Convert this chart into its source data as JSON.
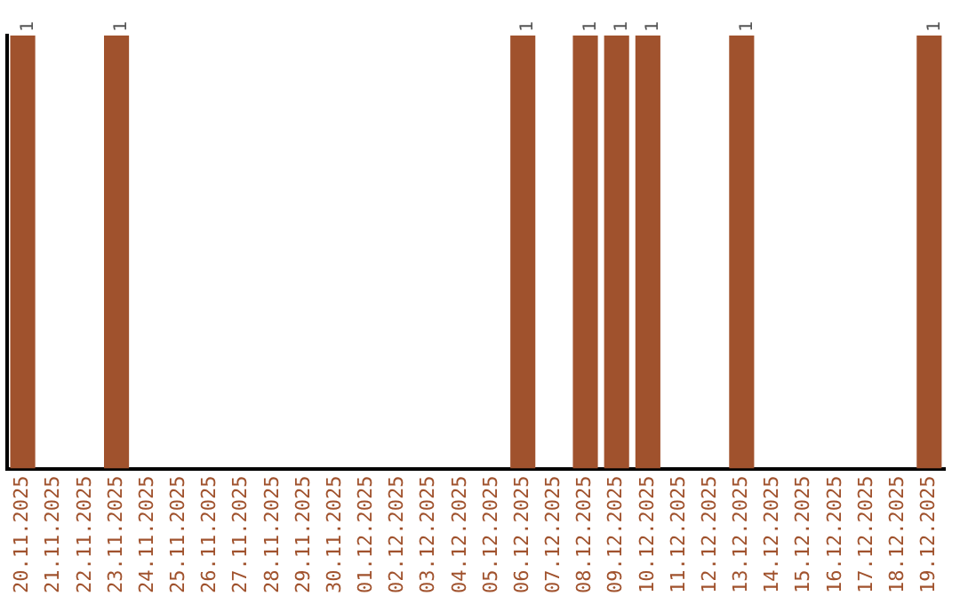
{
  "chart_data": {
    "type": "bar",
    "categories": [
      "20.11.2025",
      "21.11.2025",
      "22.11.2025",
      "23.11.2025",
      "24.11.2025",
      "25.11.2025",
      "26.11.2025",
      "27.11.2025",
      "28.11.2025",
      "29.11.2025",
      "30.11.2025",
      "01.12.2025",
      "02.12.2025",
      "03.12.2025",
      "04.12.2025",
      "05.12.2025",
      "06.12.2025",
      "07.12.2025",
      "08.12.2025",
      "09.12.2025",
      "10.12.2025",
      "11.12.2025",
      "12.12.2025",
      "13.12.2025",
      "14.12.2025",
      "15.12.2025",
      "16.12.2025",
      "17.12.2025",
      "18.12.2025",
      "19.12.2025"
    ],
    "values": [
      1,
      0,
      0,
      1,
      0,
      0,
      0,
      0,
      0,
      0,
      0,
      0,
      0,
      0,
      0,
      0,
      1,
      0,
      1,
      1,
      1,
      0,
      0,
      1,
      0,
      0,
      0,
      0,
      0,
      1
    ],
    "value_labels": [
      "1",
      null,
      null,
      "1",
      null,
      null,
      null,
      null,
      null,
      null,
      null,
      null,
      null,
      null,
      null,
      null,
      "1",
      null,
      "1",
      "1",
      "1",
      null,
      null,
      "1",
      null,
      null,
      null,
      null,
      null,
      "1"
    ],
    "color": "#a0522d",
    "grid": false,
    "legend": false,
    "tick_labels": "x"
  }
}
